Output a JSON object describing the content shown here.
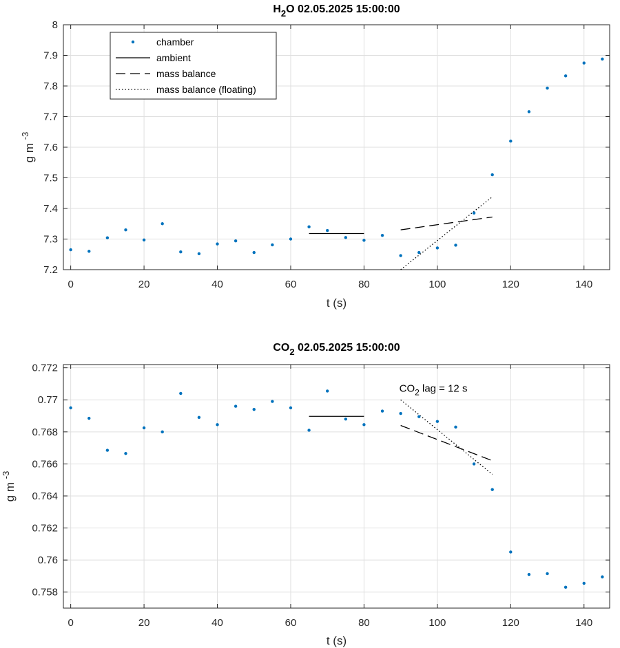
{
  "chart_data": [
    {
      "type": "scatter",
      "title_main": "H",
      "title_sub": "2",
      "title_rest": "O  02.05.2025 15:00:00",
      "xlabel": "t (s)",
      "ylabel_main": "g m",
      "ylabel_sup": "-3",
      "xlim": [
        -2,
        147
      ],
      "ylim": [
        7.2,
        8.0
      ],
      "xticks": [
        0,
        20,
        40,
        60,
        80,
        100,
        120,
        140
      ],
      "yticks": [
        7.2,
        7.3,
        7.4,
        7.5,
        7.6,
        7.7,
        7.8,
        7.9,
        8.0
      ],
      "ytick_labels": [
        "7.2",
        "7.3",
        "7.4",
        "7.5",
        "7.6",
        "7.7",
        "7.8",
        "7.9",
        "8"
      ],
      "grid": true,
      "legend_position": "top-left",
      "legend": [
        {
          "label": "chamber",
          "style": "dot"
        },
        {
          "label": "ambient",
          "style": "solid"
        },
        {
          "label": "mass balance",
          "style": "dashed"
        },
        {
          "label": "mass balance (floating)",
          "style": "dotted"
        }
      ],
      "colors": {
        "chamber": "#0072bd",
        "lines": "#000000"
      },
      "chamber": {
        "x": [
          0,
          5,
          10,
          15,
          20,
          25,
          30,
          35,
          40,
          45,
          50,
          55,
          60,
          65,
          70,
          75,
          80,
          85,
          90,
          95,
          100,
          105,
          110,
          115,
          120,
          125,
          130,
          135,
          140,
          145
        ],
        "y": [
          7.265,
          7.26,
          7.304,
          7.33,
          7.297,
          7.35,
          7.258,
          7.252,
          7.284,
          7.294,
          7.256,
          7.281,
          7.3,
          7.34,
          7.328,
          7.305,
          7.296,
          7.312,
          7.246,
          7.256,
          7.271,
          7.28,
          7.385,
          7.51,
          7.62,
          7.716,
          7.793,
          7.833,
          7.875,
          7.888
        ]
      },
      "ambient": {
        "x": [
          65,
          80
        ],
        "y": [
          7.318,
          7.318
        ]
      },
      "mass_balance": {
        "x": [
          90,
          115
        ],
        "y": [
          7.33,
          7.372
        ]
      },
      "mass_balance_floating": {
        "x": [
          90,
          115
        ],
        "y": [
          7.2,
          7.438
        ]
      }
    },
    {
      "type": "scatter",
      "title_main": "CO",
      "title_sub": "2",
      "title_rest": "  02.05.2025 15:00:00",
      "xlabel": "t (s)",
      "ylabel_main": "g m",
      "ylabel_sup": "-3",
      "xlim": [
        -2,
        147
      ],
      "ylim": [
        0.757,
        0.7722
      ],
      "xticks": [
        0,
        20,
        40,
        60,
        80,
        100,
        120,
        140
      ],
      "yticks": [
        0.758,
        0.76,
        0.762,
        0.764,
        0.766,
        0.768,
        0.77,
        0.772
      ],
      "ytick_labels": [
        "0.758",
        "0.76",
        "0.762",
        "0.764",
        "0.766",
        "0.768",
        "0.77",
        "0.772"
      ],
      "grid": true,
      "annotation": {
        "main": "CO",
        "sub": "2",
        "rest": " lag = 12 s",
        "x": 90,
        "y": 0.7706
      },
      "colors": {
        "chamber": "#0072bd",
        "lines": "#000000"
      },
      "chamber": {
        "x": [
          0,
          5,
          10,
          15,
          20,
          25,
          30,
          35,
          40,
          45,
          50,
          55,
          60,
          65,
          70,
          75,
          80,
          85,
          90,
          95,
          100,
          105,
          110,
          115,
          120,
          125,
          130,
          135,
          140,
          145
        ],
        "y": [
          0.7695,
          0.76885,
          0.76685,
          0.76665,
          0.76825,
          0.768,
          0.7704,
          0.7689,
          0.76845,
          0.7696,
          0.7694,
          0.7699,
          0.7695,
          0.7681,
          0.77055,
          0.7688,
          0.76845,
          0.7693,
          0.76915,
          0.76895,
          0.76865,
          0.7683,
          0.766,
          0.7644,
          0.7605,
          0.7591,
          0.75915,
          0.7583,
          0.75855,
          0.75895
        ]
      },
      "ambient": {
        "x": [
          65,
          80
        ],
        "y": [
          0.76897,
          0.76897
        ]
      },
      "mass_balance": {
        "x": [
          90,
          115
        ],
        "y": [
          0.7684,
          0.7662
        ]
      },
      "mass_balance_floating": {
        "x": [
          90,
          115
        ],
        "y": [
          0.77,
          0.76535
        ]
      }
    }
  ]
}
